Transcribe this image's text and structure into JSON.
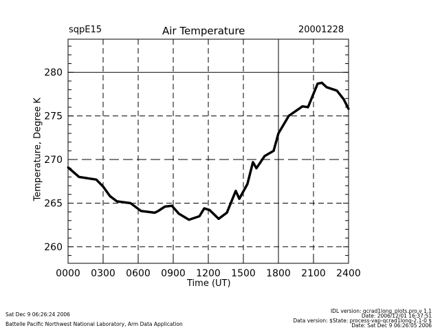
{
  "chart_data": {
    "type": "line",
    "title": "Air Temperature",
    "site": "sqpE15",
    "date": "20001228",
    "xlabel": "Time (UT)",
    "ylabel": "Temperature, Degree K",
    "xlim": [
      0,
      24
    ],
    "ylim": [
      258.1,
      283.8
    ],
    "xticks": [
      {
        "v": 0,
        "label": "0000"
      },
      {
        "v": 3,
        "label": "0300"
      },
      {
        "v": 6,
        "label": "0600"
      },
      {
        "v": 9,
        "label": "0900"
      },
      {
        "v": 12,
        "label": "1200"
      },
      {
        "v": 15,
        "label": "1500"
      },
      {
        "v": 18,
        "label": "1800"
      },
      {
        "v": 21,
        "label": "2100"
      },
      {
        "v": 24,
        "label": "2400"
      }
    ],
    "yticks": [
      {
        "v": 260,
        "label": "260"
      },
      {
        "v": 265,
        "label": "265"
      },
      {
        "v": 270,
        "label": "270"
      },
      {
        "v": 275,
        "label": "275"
      },
      {
        "v": 280,
        "label": "280"
      }
    ],
    "hgrid": [
      {
        "v": 260,
        "style": "dash"
      },
      {
        "v": 265,
        "style": "dash"
      },
      {
        "v": 270,
        "style": "longdash"
      },
      {
        "v": 275,
        "style": "dash"
      },
      {
        "v": 280,
        "style": "solid"
      }
    ],
    "vgrid": [
      {
        "v": 3,
        "style": "dash"
      },
      {
        "v": 6,
        "style": "dash"
      },
      {
        "v": 9,
        "style": "dash"
      },
      {
        "v": 12,
        "style": "dash"
      },
      {
        "v": 15,
        "style": "dash"
      },
      {
        "v": 18,
        "style": "solid"
      },
      {
        "v": 21,
        "style": "dash"
      }
    ],
    "grid": true,
    "series": [
      {
        "name": "Air Temperature",
        "x": [
          0,
          0.94,
          2.41,
          3.0,
          3.59,
          4.18,
          5.35,
          6.24,
          7.41,
          7.71,
          8.29,
          8.88,
          9.47,
          10.35,
          11.24,
          11.65,
          12.12,
          12.88,
          13.59,
          14.35,
          14.65,
          15.35,
          15.82,
          16.12,
          16.82,
          17.59,
          18.0,
          18.88,
          20.06,
          20.53,
          21.35,
          21.71,
          22.12,
          23.0,
          23.59,
          24.0
        ],
        "y": [
          269.1,
          268.0,
          267.7,
          266.9,
          265.8,
          265.2,
          265.0,
          264.1,
          263.9,
          264.1,
          264.6,
          264.7,
          263.8,
          263.1,
          263.5,
          264.4,
          264.2,
          263.2,
          263.9,
          266.4,
          265.5,
          267.2,
          269.7,
          269.0,
          270.4,
          271.0,
          273.0,
          275.0,
          276.1,
          276.0,
          278.7,
          278.8,
          278.3,
          277.9,
          276.9,
          275.8
        ]
      }
    ]
  },
  "footer": {
    "left1": "Sat Dec  9 06:26:24 2006",
    "left2": "Battelle Pacific Northwest National Laboratory, Arm Data Application",
    "right1": "IDL version: qcrad1long_plots.pro,v 1.1",
    "right2": "Date: 2006/12/01 16:37:51",
    "right3": "Data version: $State: process-vap-qcrad1long-2.1-0 $",
    "right4": "Date: Sat Dec  9 06:26:05 2006"
  }
}
